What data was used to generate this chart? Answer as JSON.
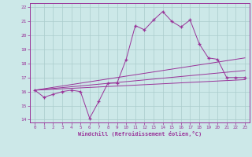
{
  "title": "",
  "xlabel": "Windchill (Refroidissement éolien,°C)",
  "background_color": "#cce8e8",
  "line_color": "#993399",
  "grid_color": "#aacccc",
  "xlim": [
    -0.5,
    23.5
  ],
  "ylim": [
    13.8,
    22.3
  ],
  "yticks": [
    14,
    15,
    16,
    17,
    18,
    19,
    20,
    21,
    22
  ],
  "xticks": [
    0,
    1,
    2,
    3,
    4,
    5,
    6,
    7,
    8,
    9,
    10,
    11,
    12,
    13,
    14,
    15,
    16,
    17,
    18,
    19,
    20,
    21,
    22,
    23
  ],
  "series1_x": [
    0,
    1,
    2,
    3,
    4,
    5,
    6,
    7,
    8,
    9,
    10,
    11,
    12,
    13,
    14,
    15,
    16,
    17,
    18,
    19,
    20,
    21,
    22,
    23
  ],
  "series1_y": [
    16.1,
    15.6,
    15.8,
    16.0,
    16.1,
    16.0,
    14.1,
    15.3,
    16.6,
    16.6,
    18.3,
    20.7,
    20.4,
    21.1,
    21.7,
    21.0,
    20.6,
    21.1,
    19.4,
    18.4,
    18.3,
    17.0,
    17.0,
    17.0
  ],
  "regression_lines": [
    {
      "x": [
        0,
        23
      ],
      "y": [
        16.1,
        18.4
      ]
    },
    {
      "x": [
        0,
        23
      ],
      "y": [
        16.1,
        17.5
      ]
    },
    {
      "x": [
        0,
        23
      ],
      "y": [
        16.1,
        16.85
      ]
    }
  ]
}
